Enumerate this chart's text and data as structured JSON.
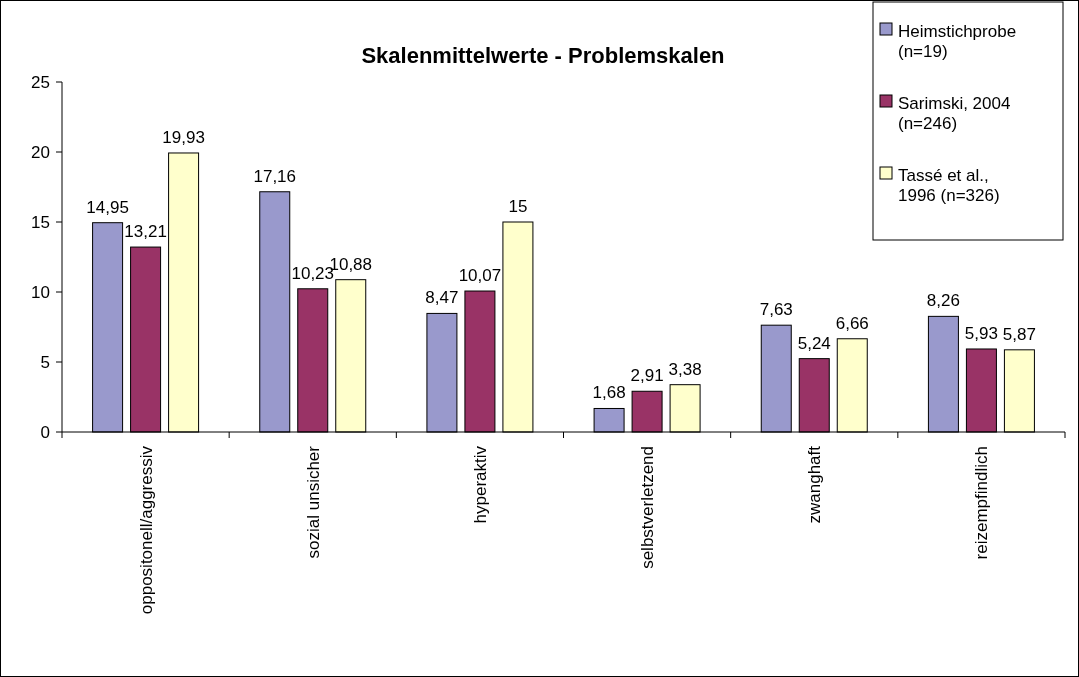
{
  "chart_data": {
    "type": "bar",
    "title": "Skalenmittelwerte - Problemskalen",
    "categories": [
      "oppositonell/aggressiv",
      "sozial unsicher",
      "hyperaktiv",
      "selbstverletzend",
      "zwanghaft",
      "reizempfindlich"
    ],
    "series": [
      {
        "name": "Heimstichprobe (n=19)",
        "color": "#9999cc",
        "values": [
          14.95,
          17.16,
          8.47,
          1.68,
          7.63,
          8.26
        ],
        "value_labels": [
          "14,95",
          "17,16",
          "8,47",
          "1,68",
          "7,63",
          "8,26"
        ]
      },
      {
        "name": "Sarimski, 2004 (n=246)",
        "color": "#993366",
        "values": [
          13.21,
          10.23,
          10.07,
          2.91,
          5.24,
          5.93
        ],
        "value_labels": [
          "13,21",
          "10,23",
          "10,07",
          "2,91",
          "5,24",
          "5,93"
        ]
      },
      {
        "name": "Tassé et al., 1996 (n=326)",
        "color": "#ffffcc",
        "values": [
          19.93,
          10.88,
          15,
          3.38,
          6.66,
          5.87
        ],
        "value_labels": [
          "19,93",
          "10,88",
          "15",
          "3,38",
          "6,66",
          "5,87"
        ]
      }
    ],
    "ylim": [
      0,
      25
    ],
    "yticks": [
      0,
      5,
      10,
      15,
      20,
      25
    ],
    "grid": false,
    "legend": "top right"
  }
}
